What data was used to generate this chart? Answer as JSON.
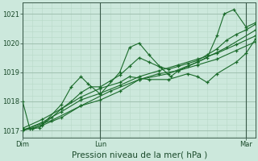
{
  "bg_color": "#cce8dc",
  "grid_color_major": "#a0c0b0",
  "grid_color_minor": "#b8d8c8",
  "line_color": "#1a6a2a",
  "title": "Pression niveau de la mer( hPa )",
  "ylim": [
    1016.75,
    1021.35
  ],
  "yticks": [
    1017,
    1018,
    1019,
    1020,
    1021
  ],
  "xlim": [
    0,
    48
  ],
  "xtick_positions": [
    0,
    16,
    46
  ],
  "xtick_labels": [
    "Dim",
    "Lun",
    "Mar"
  ],
  "vline_color": "#3a5a4a",
  "series": [
    [
      0.0,
      1018.0,
      1.5,
      1017.05,
      3.5,
      1017.1,
      8.0,
      1017.9,
      10.0,
      1018.5,
      12.0,
      1018.85,
      13.5,
      1018.6,
      16.0,
      1018.25,
      20.0,
      1019.0,
      22.0,
      1019.85,
      24.0,
      1020.0,
      26.0,
      1019.6,
      28.5,
      1019.15,
      30.5,
      1018.85,
      32.0,
      1019.05,
      34.0,
      1019.2,
      36.0,
      1019.35,
      38.0,
      1019.5,
      40.0,
      1020.25,
      41.5,
      1021.0,
      43.5,
      1021.15,
      46.0,
      1020.55,
      48.0,
      1020.7
    ],
    [
      0.0,
      1017.05,
      2.0,
      1017.05,
      4.0,
      1017.2,
      6.0,
      1017.45,
      8.0,
      1017.75,
      10.0,
      1018.0,
      12.0,
      1018.3,
      14.0,
      1018.5,
      16.0,
      1018.5,
      18.0,
      1018.7,
      20.0,
      1018.9,
      22.0,
      1019.2,
      24.0,
      1019.5,
      26.0,
      1019.35,
      28.0,
      1019.2,
      30.0,
      1019.1,
      32.0,
      1019.2,
      34.0,
      1019.3,
      36.0,
      1019.4,
      38.0,
      1019.6,
      40.0,
      1019.8,
      42.0,
      1020.1,
      44.0,
      1020.3,
      46.0,
      1020.45,
      48.0,
      1020.65
    ],
    [
      0.0,
      1017.0,
      4.0,
      1017.28,
      8.0,
      1017.65,
      12.0,
      1018.05,
      16.0,
      1018.28,
      20.0,
      1018.55,
      24.0,
      1018.85,
      28.0,
      1019.05,
      32.0,
      1019.25,
      36.0,
      1019.45,
      40.0,
      1019.65,
      44.0,
      1019.95,
      48.0,
      1020.25
    ],
    [
      0.0,
      1017.0,
      4.0,
      1017.18,
      8.0,
      1017.45,
      12.0,
      1017.85,
      16.0,
      1018.05,
      20.0,
      1018.35,
      24.0,
      1018.75,
      28.0,
      1018.95,
      32.0,
      1019.05,
      36.0,
      1019.25,
      40.0,
      1019.45,
      44.0,
      1019.75,
      48.0,
      1020.05
    ],
    [
      0.0,
      1017.08,
      4.0,
      1017.38,
      8.0,
      1017.75,
      12.0,
      1018.15,
      16.0,
      1018.45,
      20.0,
      1018.65,
      22.0,
      1018.85,
      26.0,
      1018.75,
      30.0,
      1018.75,
      34.0,
      1018.95,
      36.0,
      1018.85,
      38.0,
      1018.65,
      40.0,
      1018.95,
      44.0,
      1019.35,
      46.0,
      1019.65,
      48.0,
      1020.15
    ],
    [
      0.0,
      1017.02,
      6.0,
      1017.35,
      12.0,
      1017.85,
      18.0,
      1018.35,
      24.0,
      1018.75,
      30.0,
      1018.95,
      36.0,
      1019.35,
      42.0,
      1019.85,
      48.0,
      1020.45
    ]
  ],
  "title_fontsize": 7.5,
  "tick_fontsize": 6.0
}
